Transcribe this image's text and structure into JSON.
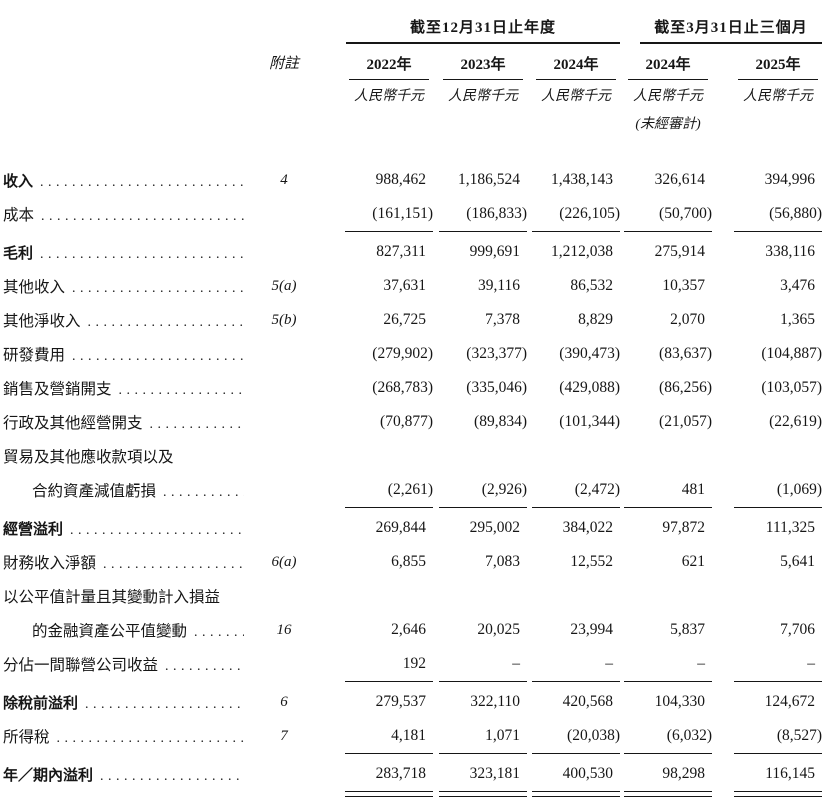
{
  "header": {
    "note_label": "附註",
    "group_year": "截至12月31日止年度",
    "group_quarter": "截至3月31日止三個月",
    "columns": [
      {
        "year": "2022年",
        "unit": "人民幣千元",
        "sub": ""
      },
      {
        "year": "2023年",
        "unit": "人民幣千元",
        "sub": ""
      },
      {
        "year": "2024年",
        "unit": "人民幣千元",
        "sub": ""
      },
      {
        "year": "2024年",
        "unit": "人民幣千元",
        "sub": "(未經審計)"
      },
      {
        "year": "2025年",
        "unit": "人民幣千元",
        "sub": ""
      }
    ]
  },
  "rows": [
    {
      "label": "收入",
      "bold": true,
      "dots": true,
      "note": "4",
      "values": [
        "988,462",
        "1,186,524",
        "1,438,143",
        "326,614",
        "394,996"
      ],
      "rule_after": "none"
    },
    {
      "label": "成本",
      "bold": false,
      "dots": true,
      "note": "",
      "values": [
        "(161,151)",
        "(186,833)",
        "(226,105)",
        "(50,700)",
        "(56,880)"
      ],
      "rule_after": "single"
    },
    {
      "label": "毛利",
      "bold": true,
      "dots": true,
      "note": "",
      "values": [
        "827,311",
        "999,691",
        "1,212,038",
        "275,914",
        "338,116"
      ],
      "rule_after": "none"
    },
    {
      "label": "其他收入",
      "bold": false,
      "dots": true,
      "note": "5(a)",
      "values": [
        "37,631",
        "39,116",
        "86,532",
        "10,357",
        "3,476"
      ],
      "rule_after": "none"
    },
    {
      "label": "其他淨收入",
      "bold": false,
      "dots": true,
      "note": "5(b)",
      "values": [
        "26,725",
        "7,378",
        "8,829",
        "2,070",
        "1,365"
      ],
      "rule_after": "none"
    },
    {
      "label": "研發費用",
      "bold": false,
      "dots": true,
      "note": "",
      "values": [
        "(279,902)",
        "(323,377)",
        "(390,473)",
        "(83,637)",
        "(104,887)"
      ],
      "rule_after": "none"
    },
    {
      "label": "銷售及營銷開支",
      "bold": false,
      "dots": true,
      "note": "",
      "values": [
        "(268,783)",
        "(335,046)",
        "(429,088)",
        "(86,256)",
        "(103,057)"
      ],
      "rule_after": "none"
    },
    {
      "label": "行政及其他經營開支",
      "bold": false,
      "dots": true,
      "note": "",
      "values": [
        "(70,877)",
        "(89,834)",
        "(101,344)",
        "(21,057)",
        "(22,619)"
      ],
      "rule_after": "none"
    },
    {
      "label": "貿易及其他應收款項以及",
      "bold": false,
      "dots": false,
      "note": "",
      "values": [
        "",
        "",
        "",
        "",
        ""
      ],
      "rule_after": "none"
    },
    {
      "label": "合約資產減值虧損",
      "bold": false,
      "dots": true,
      "indent": true,
      "note": "",
      "values": [
        "(2,261)",
        "(2,926)",
        "(2,472)",
        "481",
        "(1,069)"
      ],
      "rule_after": "single"
    },
    {
      "label": "經營溢利",
      "bold": true,
      "dots": true,
      "note": "",
      "values": [
        "269,844",
        "295,002",
        "384,022",
        "97,872",
        "111,325"
      ],
      "rule_after": "none"
    },
    {
      "label": "財務收入淨額",
      "bold": false,
      "dots": true,
      "note": "6(a)",
      "values": [
        "6,855",
        "7,083",
        "12,552",
        "621",
        "5,641"
      ],
      "rule_after": "none"
    },
    {
      "label": "以公平值計量且其變動計入損益",
      "bold": false,
      "dots": false,
      "note": "",
      "values": [
        "",
        "",
        "",
        "",
        ""
      ],
      "rule_after": "none"
    },
    {
      "label": "的金融資產公平值變動",
      "bold": false,
      "dots": true,
      "indent": true,
      "note": "16",
      "values": [
        "2,646",
        "20,025",
        "23,994",
        "5,837",
        "7,706"
      ],
      "rule_after": "none"
    },
    {
      "label": "分佔一間聯營公司收益",
      "bold": false,
      "dots": true,
      "note": "",
      "values": [
        "192",
        "–",
        "–",
        "–",
        "–"
      ],
      "rule_after": "single"
    },
    {
      "label": "除稅前溢利",
      "bold": true,
      "dots": true,
      "note": "6",
      "values": [
        "279,537",
        "322,110",
        "420,568",
        "104,330",
        "124,672"
      ],
      "rule_after": "none"
    },
    {
      "label": "所得稅",
      "bold": false,
      "dots": true,
      "note": "7",
      "values": [
        "4,181",
        "1,071",
        "(20,038)",
        "(6,032)",
        "(8,527)"
      ],
      "rule_after": "single"
    },
    {
      "label": "年／期內溢利",
      "bold": true,
      "dots": true,
      "note": "",
      "values": [
        "283,718",
        "323,181",
        "400,530",
        "98,298",
        "116,145"
      ],
      "rule_after": "double"
    }
  ]
}
